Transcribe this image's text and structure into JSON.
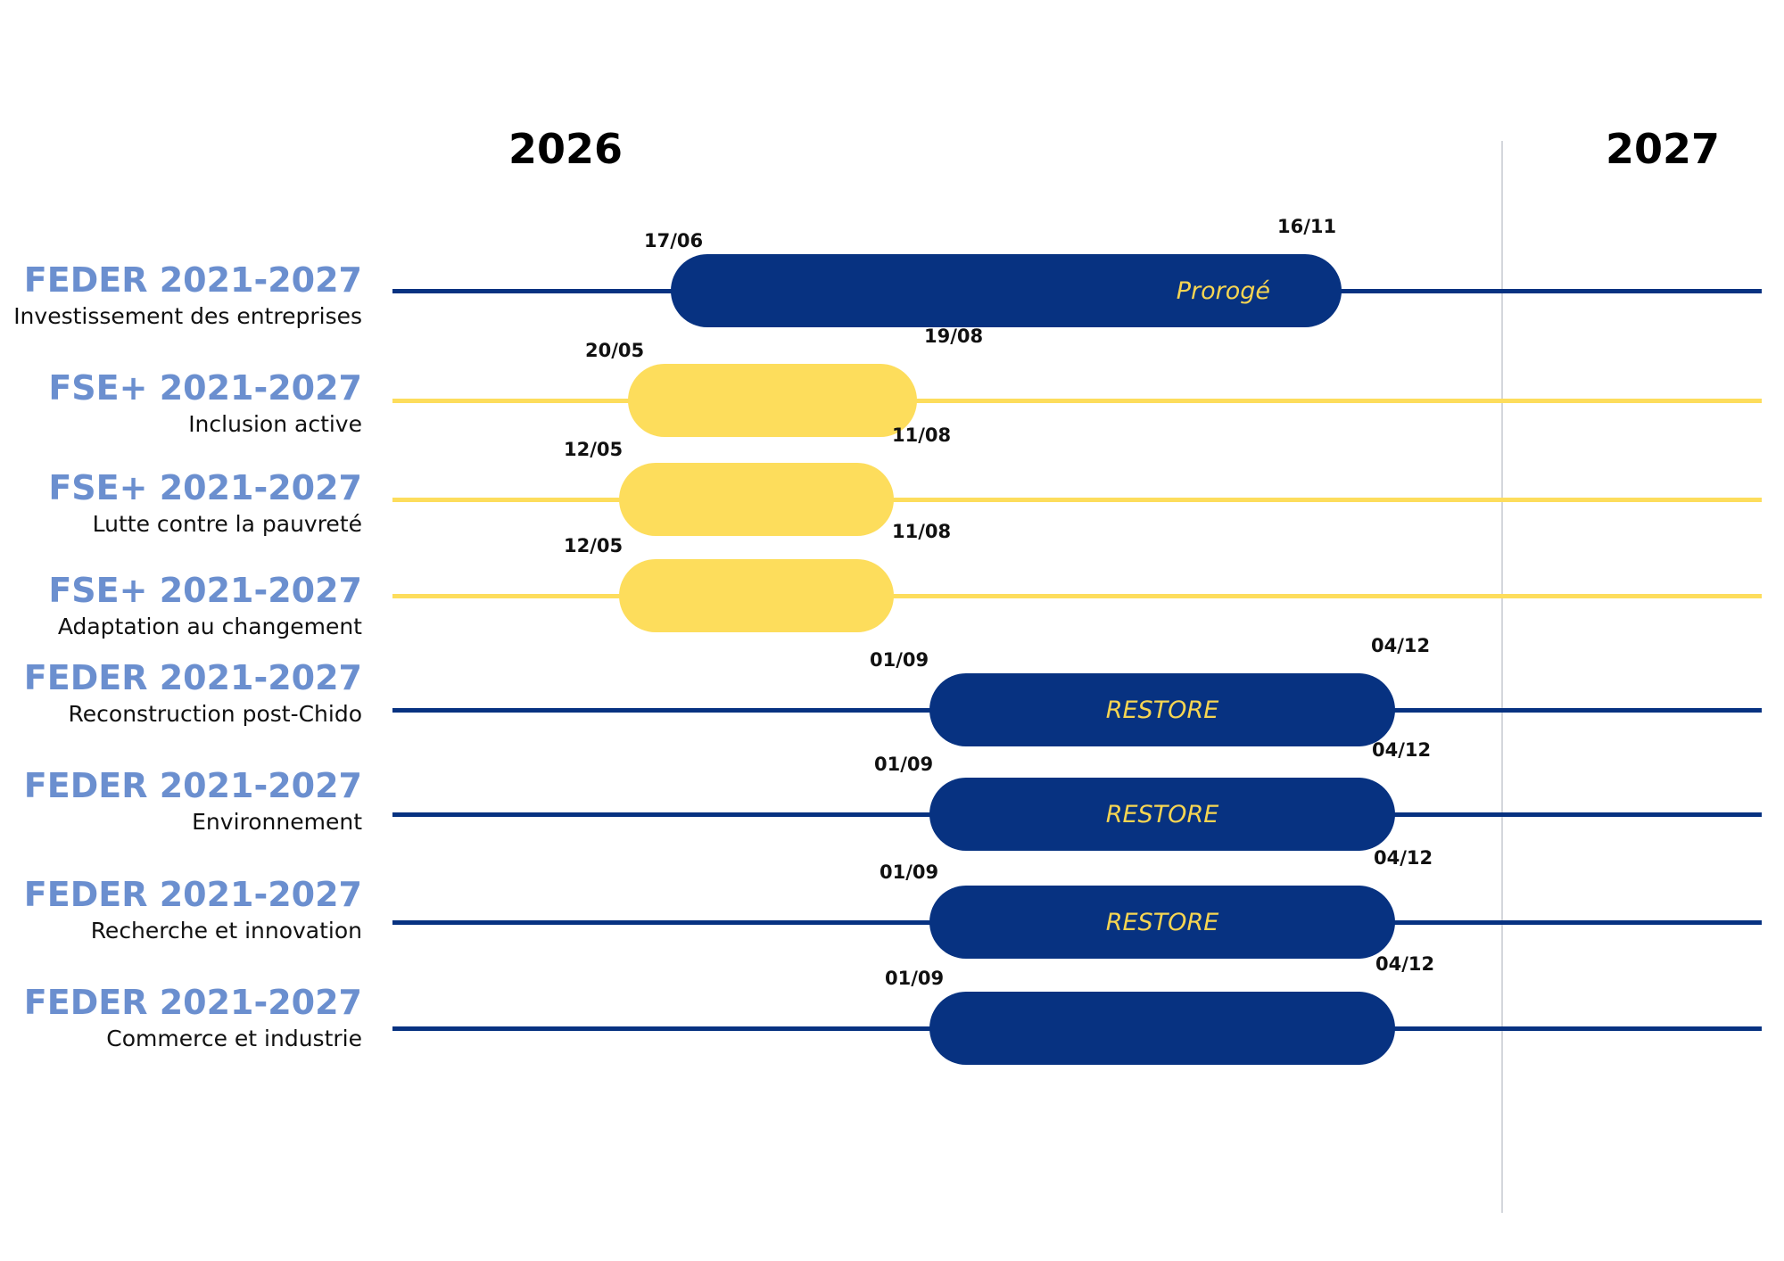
{
  "years": {
    "left": "2026",
    "right": "2027"
  },
  "colors": {
    "feder": "#073281",
    "fse": "#fddd5c",
    "program_title": "#6b8fcf",
    "pill_text": "#f6d552"
  },
  "rows": [
    {
      "program": "FEDER 2021-2027",
      "subtitle": "Investissement des entreprises",
      "start": "17/06",
      "end": "16/11",
      "pill_label": "Prorogé",
      "fund": "feder"
    },
    {
      "program": "FSE+ 2021-2027",
      "subtitle": "Inclusion active",
      "start": "20/05",
      "end": "19/08",
      "pill_label": "",
      "fund": "fse"
    },
    {
      "program": "FSE+ 2021-2027",
      "subtitle": "Lutte contre la pauvreté",
      "start": "12/05",
      "end": "11/08",
      "pill_label": "",
      "fund": "fse"
    },
    {
      "program": "FSE+ 2021-2027",
      "subtitle": "Adaptation au changement",
      "start": "12/05",
      "end": "11/08",
      "pill_label": "",
      "fund": "fse"
    },
    {
      "program": "FEDER 2021-2027",
      "subtitle": "Reconstruction post-Chido",
      "start": "01/09",
      "end": "04/12",
      "pill_label": "RESTORE",
      "fund": "feder"
    },
    {
      "program": "FEDER 2021-2027",
      "subtitle": "Environnement",
      "start": "01/09",
      "end": "04/12",
      "pill_label": "RESTORE",
      "fund": "feder"
    },
    {
      "program": "FEDER 2021-2027",
      "subtitle": "Recherche et innovation",
      "start": "01/09",
      "end": "04/12",
      "pill_label": "RESTORE",
      "fund": "feder"
    },
    {
      "program": "FEDER 2021-2027",
      "subtitle": "Commerce et industrie",
      "start": "01/09",
      "end": "04/12",
      "pill_label": "",
      "fund": "feder"
    }
  ]
}
